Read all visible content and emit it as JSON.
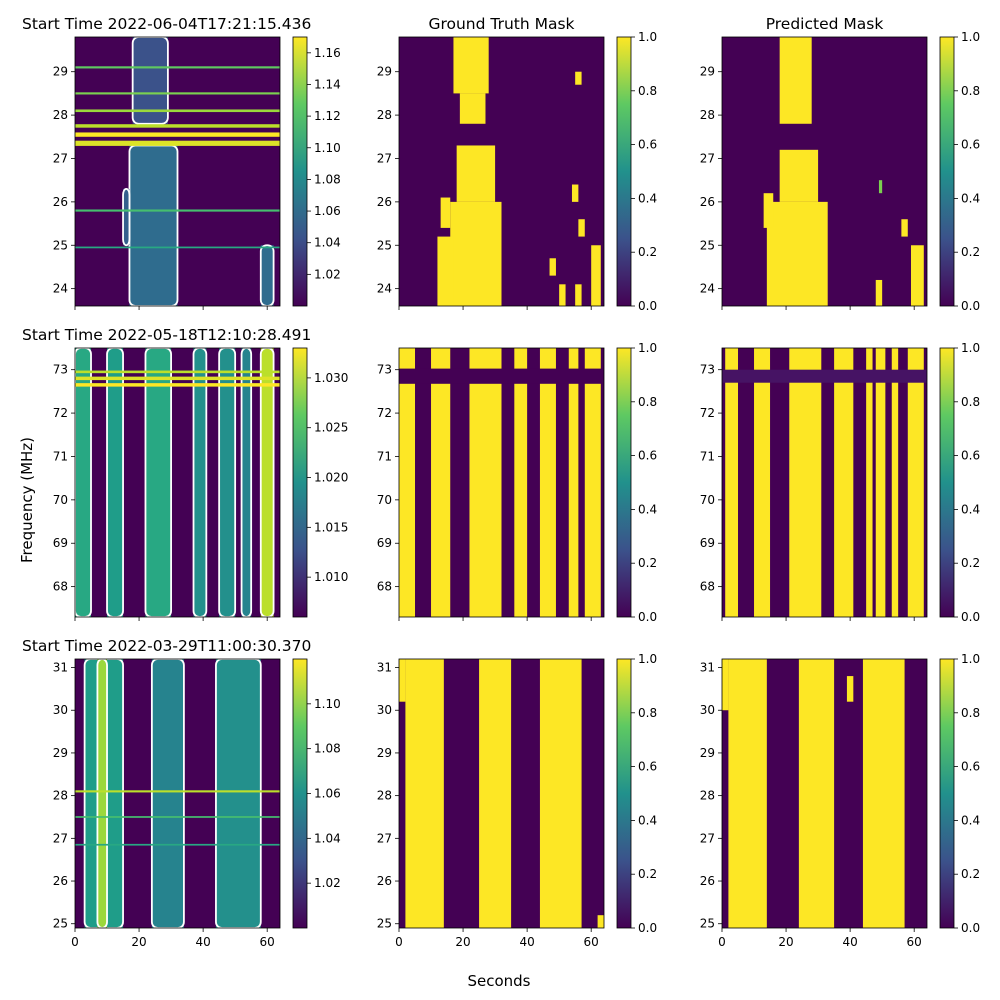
{
  "figure": {
    "ylabel": "Frequency (MHz)",
    "xlabel": "Seconds",
    "column_titles": [
      "",
      "Ground Truth Mask",
      "Predicted Mask"
    ]
  },
  "colormap": "viridis",
  "colors": {
    "low": "#440154",
    "high": "#fde725",
    "contour": "#ffffff",
    "axis": "#000000"
  },
  "chart_data": [
    {
      "type": "heatmap",
      "row": 0,
      "col": 0,
      "title": "Start Time 2022-06-04T17:21:15.436",
      "xlim": [
        0,
        64
      ],
      "ylim": [
        23.6,
        29.8
      ],
      "xticks": [
        0,
        20,
        40,
        60
      ],
      "xtick_labels": [
        "",
        "",
        "",
        ""
      ],
      "yticks": [
        24,
        25,
        26,
        27,
        28,
        29
      ],
      "colorbar": {
        "range": [
          1.0,
          1.17
        ],
        "ticks": [
          1.02,
          1.04,
          1.06,
          1.08,
          1.1,
          1.12,
          1.14,
          1.16
        ],
        "tick_labels": [
          "1.02",
          "1.04",
          "1.06",
          "1.08",
          "1.10",
          "1.12",
          "1.14",
          "1.16"
        ]
      },
      "contours": true,
      "bands": [
        {
          "x0": 17,
          "x1": 32,
          "y0": 23.6,
          "y1": 27.3,
          "v": 0.35
        },
        {
          "x0": 18,
          "x1": 29,
          "y0": 27.8,
          "y1": 29.8,
          "v": 0.25
        },
        {
          "x0": 15,
          "x1": 17,
          "y0": 25.0,
          "y1": 26.3,
          "v": 0.3
        },
        {
          "x0": 58,
          "x1": 62,
          "y0": 23.6,
          "y1": 25.0,
          "v": 0.35
        }
      ],
      "hlines": [
        {
          "y": 27.35,
          "h": 0.12,
          "v": 0.95
        },
        {
          "y": 27.55,
          "h": 0.1,
          "v": 1.0
        },
        {
          "y": 27.75,
          "h": 0.08,
          "v": 0.9
        },
        {
          "y": 28.1,
          "h": 0.06,
          "v": 0.85
        },
        {
          "y": 28.5,
          "h": 0.05,
          "v": 0.8
        },
        {
          "y": 29.1,
          "h": 0.05,
          "v": 0.75
        },
        {
          "y": 25.8,
          "h": 0.05,
          "v": 0.7
        },
        {
          "y": 24.95,
          "h": 0.04,
          "v": 0.6
        }
      ]
    },
    {
      "type": "heatmap",
      "row": 0,
      "col": 1,
      "title": "",
      "xlim": [
        0,
        64
      ],
      "ylim": [
        23.6,
        29.8
      ],
      "xticks": [
        0,
        20,
        40,
        60
      ],
      "xtick_labels": [
        "",
        "",
        "",
        ""
      ],
      "yticks": [
        24,
        25,
        26,
        27,
        28,
        29
      ],
      "colorbar": {
        "range": [
          0,
          1
        ],
        "ticks": [
          0,
          0.2,
          0.4,
          0.6,
          0.8,
          1.0
        ],
        "tick_labels": [
          "0.0",
          "0.2",
          "0.4",
          "0.6",
          "0.8",
          "1.0"
        ]
      },
      "contours": false,
      "bands": [
        {
          "x0": 17,
          "x1": 28,
          "y0": 28.5,
          "y1": 29.8,
          "v": 1
        },
        {
          "x0": 19,
          "x1": 27,
          "y0": 27.8,
          "y1": 28.5,
          "v": 1
        },
        {
          "x0": 18,
          "x1": 30,
          "y0": 26.0,
          "y1": 27.3,
          "v": 1
        },
        {
          "x0": 16,
          "x1": 32,
          "y0": 23.6,
          "y1": 26.0,
          "v": 1
        },
        {
          "x0": 12,
          "x1": 17,
          "y0": 23.6,
          "y1": 25.2,
          "v": 1
        },
        {
          "x0": 13,
          "x1": 16,
          "y0": 25.4,
          "y1": 26.1,
          "v": 1
        },
        {
          "x0": 47,
          "x1": 49,
          "y0": 24.3,
          "y1": 24.7,
          "v": 1
        },
        {
          "x0": 50,
          "x1": 52,
          "y0": 23.6,
          "y1": 24.1,
          "v": 1
        },
        {
          "x0": 54,
          "x1": 56,
          "y0": 26.0,
          "y1": 26.4,
          "v": 1
        },
        {
          "x0": 56,
          "x1": 58,
          "y0": 25.2,
          "y1": 25.6,
          "v": 1
        },
        {
          "x0": 60,
          "x1": 63,
          "y0": 23.6,
          "y1": 25.0,
          "v": 1
        },
        {
          "x0": 55,
          "x1": 57,
          "y0": 23.6,
          "y1": 24.1,
          "v": 1
        },
        {
          "x0": 55,
          "x1": 57,
          "y0": 28.7,
          "y1": 29.0,
          "v": 1
        }
      ],
      "hlines": []
    },
    {
      "type": "heatmap",
      "row": 0,
      "col": 2,
      "title": "",
      "xlim": [
        0,
        64
      ],
      "ylim": [
        23.6,
        29.8
      ],
      "xticks": [
        0,
        20,
        40,
        60
      ],
      "xtick_labels": [
        "",
        "",
        "",
        ""
      ],
      "yticks": [
        24,
        25,
        26,
        27,
        28,
        29
      ],
      "colorbar": {
        "range": [
          0,
          1
        ],
        "ticks": [
          0,
          0.2,
          0.4,
          0.6,
          0.8,
          1.0
        ],
        "tick_labels": [
          "0.0",
          "0.2",
          "0.4",
          "0.6",
          "0.8",
          "1.0"
        ]
      },
      "contours": false,
      "bands": [
        {
          "x0": 18,
          "x1": 28,
          "y0": 27.8,
          "y1": 29.8,
          "v": 1
        },
        {
          "x0": 18,
          "x1": 30,
          "y0": 26.0,
          "y1": 27.2,
          "v": 1
        },
        {
          "x0": 14,
          "x1": 33,
          "y0": 23.6,
          "y1": 26.0,
          "v": 1
        },
        {
          "x0": 13,
          "x1": 16,
          "y0": 25.4,
          "y1": 26.2,
          "v": 1
        },
        {
          "x0": 48,
          "x1": 50,
          "y0": 23.6,
          "y1": 24.2,
          "v": 1
        },
        {
          "x0": 56,
          "x1": 58,
          "y0": 25.2,
          "y1": 25.6,
          "v": 1
        },
        {
          "x0": 59,
          "x1": 63,
          "y0": 23.6,
          "y1": 25.0,
          "v": 1
        },
        {
          "x0": 49,
          "x1": 50,
          "y0": 26.2,
          "y1": 26.5,
          "v": 0.8
        }
      ],
      "hlines": []
    },
    {
      "type": "heatmap",
      "row": 1,
      "col": 0,
      "title": "Start Time 2022-05-18T12:10:28.491",
      "xlim": [
        0,
        64
      ],
      "ylim": [
        67.3,
        73.5
      ],
      "xticks": [
        0,
        20,
        40,
        60
      ],
      "xtick_labels": [
        "",
        "",
        "",
        ""
      ],
      "yticks": [
        68,
        69,
        70,
        71,
        72,
        73
      ],
      "colorbar": {
        "range": [
          1.006,
          1.033
        ],
        "ticks": [
          1.01,
          1.015,
          1.02,
          1.025,
          1.03
        ],
        "tick_labels": [
          "1.010",
          "1.015",
          "1.020",
          "1.025",
          "1.030"
        ]
      },
      "contours": true,
      "bands": [
        {
          "x0": 0,
          "x1": 5,
          "y0": 67.3,
          "y1": 73.5,
          "v": 0.6
        },
        {
          "x0": 10,
          "x1": 15,
          "y0": 67.3,
          "y1": 73.5,
          "v": 0.55
        },
        {
          "x0": 22,
          "x1": 30,
          "y0": 67.3,
          "y1": 73.5,
          "v": 0.6
        },
        {
          "x0": 37,
          "x1": 41,
          "y0": 67.3,
          "y1": 73.5,
          "v": 0.5
        },
        {
          "x0": 45,
          "x1": 50,
          "y0": 67.3,
          "y1": 73.5,
          "v": 0.5
        },
        {
          "x0": 52,
          "x1": 55,
          "y0": 67.3,
          "y1": 73.5,
          "v": 0.45
        },
        {
          "x0": 58,
          "x1": 62,
          "y0": 67.3,
          "y1": 73.5,
          "v": 0.9
        }
      ],
      "hlines": [
        {
          "y": 72.65,
          "h": 0.08,
          "v": 1.0
        },
        {
          "y": 72.8,
          "h": 0.08,
          "v": 0.95
        },
        {
          "y": 72.95,
          "h": 0.06,
          "v": 0.9
        }
      ]
    },
    {
      "type": "heatmap",
      "row": 1,
      "col": 1,
      "title": "",
      "xlim": [
        0,
        64
      ],
      "ylim": [
        67.3,
        73.5
      ],
      "xticks": [
        0,
        20,
        40,
        60
      ],
      "xtick_labels": [
        "",
        "",
        "",
        ""
      ],
      "yticks": [
        68,
        69,
        70,
        71,
        72,
        73
      ],
      "colorbar": {
        "range": [
          0,
          1
        ],
        "ticks": [
          0,
          0.2,
          0.4,
          0.6,
          0.8,
          1.0
        ],
        "tick_labels": [
          "0.0",
          "0.2",
          "0.4",
          "0.6",
          "0.8",
          "1.0"
        ]
      },
      "contours": false,
      "bands": [
        {
          "x0": 0,
          "x1": 5,
          "y0": 67.3,
          "y1": 73.5,
          "v": 1
        },
        {
          "x0": 10,
          "x1": 16,
          "y0": 67.3,
          "y1": 73.5,
          "v": 1
        },
        {
          "x0": 22,
          "x1": 32,
          "y0": 67.3,
          "y1": 73.5,
          "v": 1
        },
        {
          "x0": 36,
          "x1": 40,
          "y0": 67.3,
          "y1": 73.5,
          "v": 1
        },
        {
          "x0": 44,
          "x1": 49,
          "y0": 67.3,
          "y1": 73.5,
          "v": 1
        },
        {
          "x0": 53,
          "x1": 56,
          "y0": 67.3,
          "y1": 73.5,
          "v": 1
        },
        {
          "x0": 58,
          "x1": 63,
          "y0": 67.3,
          "y1": 73.5,
          "v": 1
        }
      ],
      "hlines": [
        {
          "y": 72.85,
          "h": 0.35,
          "v": 0
        }
      ]
    },
    {
      "type": "heatmap",
      "row": 1,
      "col": 2,
      "title": "",
      "xlim": [
        0,
        64
      ],
      "ylim": [
        67.3,
        73.5
      ],
      "xticks": [
        0,
        20,
        40,
        60
      ],
      "xtick_labels": [
        "",
        "",
        "",
        ""
      ],
      "yticks": [
        68,
        69,
        70,
        71,
        72,
        73
      ],
      "colorbar": {
        "range": [
          0,
          1
        ],
        "ticks": [
          0,
          0.2,
          0.4,
          0.6,
          0.8,
          1.0
        ],
        "tick_labels": [
          "0.0",
          "0.2",
          "0.4",
          "0.6",
          "0.8",
          "1.0"
        ]
      },
      "contours": false,
      "bands": [
        {
          "x0": 1,
          "x1": 5,
          "y0": 67.3,
          "y1": 73.5,
          "v": 1
        },
        {
          "x0": 10,
          "x1": 15,
          "y0": 67.3,
          "y1": 73.5,
          "v": 1
        },
        {
          "x0": 21,
          "x1": 31,
          "y0": 67.3,
          "y1": 73.5,
          "v": 1
        },
        {
          "x0": 35,
          "x1": 41,
          "y0": 67.3,
          "y1": 73.5,
          "v": 1
        },
        {
          "x0": 45,
          "x1": 47,
          "y0": 67.3,
          "y1": 73.5,
          "v": 1
        },
        {
          "x0": 48,
          "x1": 51,
          "y0": 67.3,
          "y1": 73.5,
          "v": 1
        },
        {
          "x0": 53,
          "x1": 55,
          "y0": 67.3,
          "y1": 73.5,
          "v": 1
        },
        {
          "x0": 58,
          "x1": 63,
          "y0": 67.3,
          "y1": 73.5,
          "v": 1
        }
      ],
      "hlines": [
        {
          "y": 72.85,
          "h": 0.3,
          "v": 0.05
        }
      ]
    },
    {
      "type": "heatmap",
      "row": 2,
      "col": 0,
      "title": "Start Time 2022-03-29T11:00:30.370",
      "xlim": [
        0,
        64
      ],
      "ylim": [
        24.9,
        31.2
      ],
      "xticks": [
        0,
        20,
        40,
        60
      ],
      "xtick_labels": [
        "0",
        "20",
        "40",
        "60"
      ],
      "yticks": [
        25,
        26,
        27,
        28,
        29,
        30,
        31
      ],
      "colorbar": {
        "range": [
          1.0,
          1.12
        ],
        "ticks": [
          1.02,
          1.04,
          1.06,
          1.08,
          1.1
        ],
        "tick_labels": [
          "1.02",
          "1.04",
          "1.06",
          "1.08",
          "1.10"
        ]
      },
      "contours": true,
      "bands": [
        {
          "x0": 3,
          "x1": 15,
          "y0": 24.9,
          "y1": 31.2,
          "v": 0.55
        },
        {
          "x0": 24,
          "x1": 34,
          "y0": 24.9,
          "y1": 31.2,
          "v": 0.45
        },
        {
          "x0": 44,
          "x1": 58,
          "y0": 24.9,
          "y1": 31.2,
          "v": 0.5
        },
        {
          "x0": 7,
          "x1": 10,
          "y0": 24.9,
          "y1": 31.2,
          "v": 0.85
        }
      ],
      "hlines": [
        {
          "y": 28.1,
          "h": 0.05,
          "v": 0.9
        },
        {
          "y": 27.5,
          "h": 0.04,
          "v": 0.7
        },
        {
          "y": 26.85,
          "h": 0.04,
          "v": 0.6
        }
      ]
    },
    {
      "type": "heatmap",
      "row": 2,
      "col": 1,
      "title": "",
      "xlim": [
        0,
        64
      ],
      "ylim": [
        24.9,
        31.2
      ],
      "xticks": [
        0,
        20,
        40,
        60
      ],
      "xtick_labels": [
        "0",
        "20",
        "40",
        "60"
      ],
      "yticks": [
        25,
        26,
        27,
        28,
        29,
        30,
        31
      ],
      "colorbar": {
        "range": [
          0,
          1
        ],
        "ticks": [
          0,
          0.2,
          0.4,
          0.6,
          0.8,
          1.0
        ],
        "tick_labels": [
          "0.0",
          "0.2",
          "0.4",
          "0.6",
          "0.8",
          "1.0"
        ]
      },
      "contours": false,
      "bands": [
        {
          "x0": 2,
          "x1": 14,
          "y0": 24.9,
          "y1": 31.2,
          "v": 1
        },
        {
          "x0": 25,
          "x1": 35,
          "y0": 24.9,
          "y1": 31.2,
          "v": 1
        },
        {
          "x0": 44,
          "x1": 57,
          "y0": 24.9,
          "y1": 31.2,
          "v": 1
        },
        {
          "x0": 0,
          "x1": 2,
          "y0": 30.2,
          "y1": 31.2,
          "v": 1
        },
        {
          "x0": 62,
          "x1": 64,
          "y0": 24.9,
          "y1": 25.2,
          "v": 1
        }
      ],
      "hlines": []
    },
    {
      "type": "heatmap",
      "row": 2,
      "col": 2,
      "title": "",
      "xlim": [
        0,
        64
      ],
      "ylim": [
        24.9,
        31.2
      ],
      "xticks": [
        0,
        20,
        40,
        60
      ],
      "xtick_labels": [
        "0",
        "20",
        "40",
        "60"
      ],
      "yticks": [
        25,
        26,
        27,
        28,
        29,
        30,
        31
      ],
      "colorbar": {
        "range": [
          0,
          1
        ],
        "ticks": [
          0,
          0.2,
          0.4,
          0.6,
          0.8,
          1.0
        ],
        "tick_labels": [
          "0.0",
          "0.2",
          "0.4",
          "0.6",
          "0.8",
          "1.0"
        ]
      },
      "contours": false,
      "bands": [
        {
          "x0": 2,
          "x1": 14,
          "y0": 24.9,
          "y1": 31.2,
          "v": 1
        },
        {
          "x0": 24,
          "x1": 35,
          "y0": 24.9,
          "y1": 31.2,
          "v": 1
        },
        {
          "x0": 44,
          "x1": 57,
          "y0": 24.9,
          "y1": 31.2,
          "v": 1
        },
        {
          "x0": 0,
          "x1": 2,
          "y0": 30.0,
          "y1": 31.2,
          "v": 1
        },
        {
          "x0": 39,
          "x1": 41,
          "y0": 30.2,
          "y1": 30.8,
          "v": 1
        }
      ],
      "hlines": []
    }
  ]
}
